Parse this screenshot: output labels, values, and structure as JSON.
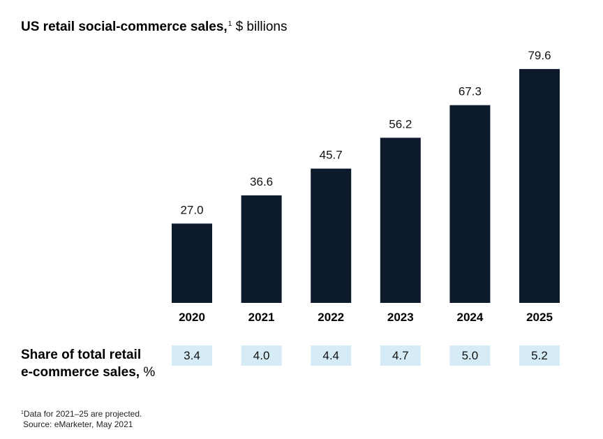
{
  "title": {
    "main": "US retail social-commerce sales,",
    "footnote_mark": "1",
    "unit": "$ billions"
  },
  "chart_data": {
    "type": "bar",
    "title": "US retail social-commerce sales, $ billions",
    "categories": [
      "2020",
      "2021",
      "2022",
      "2023",
      "2024",
      "2025"
    ],
    "values": [
      27.0,
      36.6,
      45.7,
      56.2,
      67.3,
      79.6
    ],
    "value_labels": [
      "27.0",
      "36.6",
      "45.7",
      "56.2",
      "67.3",
      "79.6"
    ],
    "ylim": [
      0,
      80
    ],
    "grid": false,
    "bar_color": "#0d1a2b",
    "share_row": {
      "label": "Share of total retail e-commerce sales, %",
      "values": [
        "3.4",
        "4.0",
        "4.4",
        "4.7",
        "5.0",
        "5.2"
      ],
      "box_color": "#d5ecf7"
    }
  },
  "share_label": {
    "line1": "Share of total retail",
    "line2": "e-commerce sales,",
    "unit": "%"
  },
  "footnote": {
    "mark": "1",
    "note": "Data for 2021–25 are projected.",
    "source": "Source: eMarketer, May 2021"
  }
}
